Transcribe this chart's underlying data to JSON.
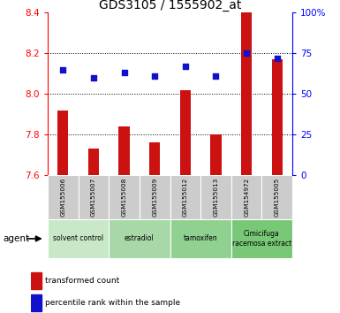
{
  "title": "GDS3105 / 1555902_at",
  "samples": [
    "GSM155006",
    "GSM155007",
    "GSM155008",
    "GSM155009",
    "GSM155012",
    "GSM155013",
    "GSM154972",
    "GSM155005"
  ],
  "red_values": [
    7.92,
    7.73,
    7.84,
    7.76,
    8.02,
    7.8,
    8.4,
    8.17
  ],
  "blue_percentile": [
    65,
    60,
    63,
    61,
    67,
    61,
    75,
    72
  ],
  "ylim_left": [
    7.6,
    8.4
  ],
  "ylim_right": [
    0,
    100
  ],
  "yticks_left": [
    7.6,
    7.8,
    8.0,
    8.2,
    8.4
  ],
  "yticks_right": [
    0,
    25,
    50,
    75,
    100
  ],
  "ytick_right_labels": [
    "0",
    "25",
    "50",
    "75",
    "100%"
  ],
  "grid_vals": [
    7.8,
    8.0,
    8.2
  ],
  "bar_color": "#cc1111",
  "dot_color": "#1111cc",
  "sample_bg": "#cccccc",
  "group_colors": [
    "#c8e8c8",
    "#a8d8a8",
    "#90d090",
    "#78c878"
  ],
  "group_labels": [
    "solvent control",
    "estradiol",
    "tamoxifen",
    "Cimicifuga\nracemosa extract"
  ],
  "group_starts": [
    0,
    2,
    4,
    6
  ],
  "group_ends": [
    2,
    4,
    6,
    8
  ],
  "bar_width": 0.35,
  "base_value": 7.6,
  "legend_red": "transformed count",
  "legend_blue": "percentile rank within the sample",
  "agent_label": "agent"
}
